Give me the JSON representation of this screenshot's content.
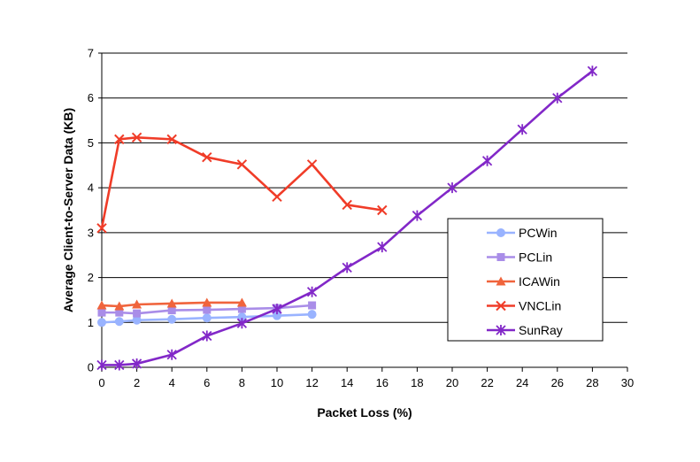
{
  "chart_data": {
    "type": "line",
    "title": "",
    "xlabel": "Packet Loss (%)",
    "ylabel": "Average Client-to-Server Data (KB)",
    "xlim": [
      0,
      30
    ],
    "ylim": [
      0,
      7
    ],
    "xticks": [
      0,
      2,
      4,
      6,
      8,
      10,
      12,
      14,
      16,
      18,
      20,
      22,
      24,
      26,
      28,
      30
    ],
    "yticks": [
      0,
      1,
      2,
      3,
      4,
      5,
      6,
      7
    ],
    "grid": "horizontal",
    "legend": "right",
    "series": [
      {
        "name": "PCWin",
        "color": "#99b3ff",
        "marker": "circle",
        "x": [
          0,
          1,
          2,
          4,
          6,
          8,
          10,
          12
        ],
        "y": [
          1.0,
          1.02,
          1.05,
          1.07,
          1.1,
          1.12,
          1.15,
          1.18
        ]
      },
      {
        "name": "PCLin",
        "color": "#a98de8",
        "marker": "square",
        "x": [
          0,
          1,
          2,
          4,
          6,
          8,
          10,
          12
        ],
        "y": [
          1.22,
          1.22,
          1.2,
          1.27,
          1.28,
          1.3,
          1.32,
          1.38
        ]
      },
      {
        "name": "ICAWin",
        "color": "#f0643c",
        "marker": "triangle",
        "x": [
          0,
          1,
          2,
          4,
          6,
          8
        ],
        "y": [
          1.38,
          1.36,
          1.4,
          1.42,
          1.44,
          1.44
        ]
      },
      {
        "name": "VNCLin",
        "color": "#f03c28",
        "marker": "x",
        "x": [
          0,
          1,
          2,
          4,
          6,
          8,
          10,
          12,
          14,
          16
        ],
        "y": [
          3.1,
          5.08,
          5.12,
          5.08,
          4.68,
          4.52,
          3.8,
          4.52,
          3.62,
          3.5
        ]
      },
      {
        "name": "SunRay",
        "color": "#8228c8",
        "marker": "star",
        "x": [
          0,
          1,
          2,
          4,
          6,
          8,
          10,
          12,
          14,
          16,
          18,
          20,
          22,
          24,
          26,
          28
        ],
        "y": [
          0.05,
          0.05,
          0.08,
          0.28,
          0.7,
          0.98,
          1.3,
          1.68,
          2.22,
          2.68,
          3.38,
          4.0,
          4.6,
          5.3,
          6.0,
          6.6
        ]
      }
    ]
  }
}
